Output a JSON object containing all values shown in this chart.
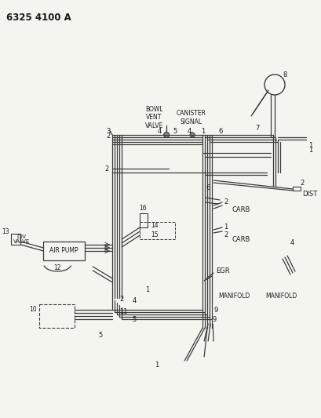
{
  "bg_color": "#f5f5f0",
  "line_color": "#3a3a3a",
  "text_color": "#1a1a1a",
  "fig_width": 4.1,
  "fig_height": 5.33,
  "dpi": 100,
  "title": "6325 4100 A",
  "labels": {
    "bowl_vent_valve": "BOWL\nVENT\nVALVE",
    "canister_signal": "CANISTER\nSIGNAL",
    "carb": "CARB",
    "egr": "EGR",
    "manifold": "MANIFOLD",
    "dist": "DIST",
    "div_valve": "DIV\nVALVE",
    "air_pump": "AIR PUMP"
  }
}
